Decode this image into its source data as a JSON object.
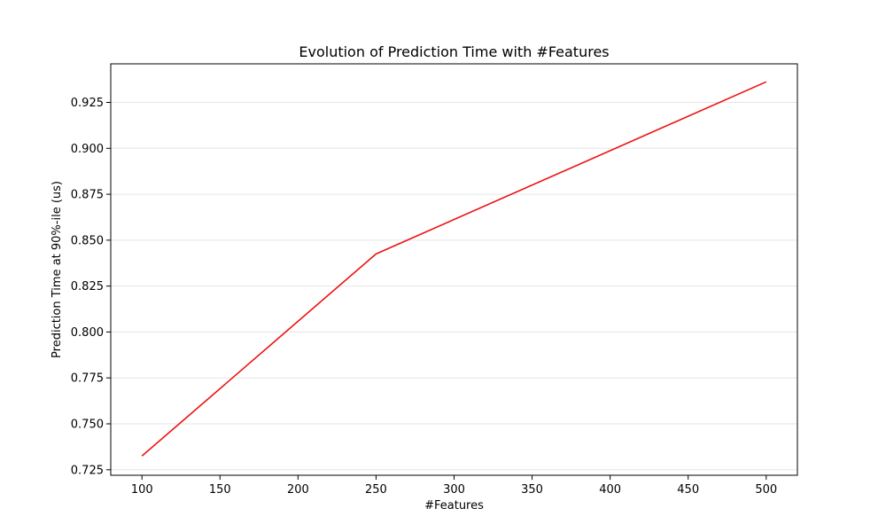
{
  "chart_data": {
    "type": "line",
    "title": "Evolution of Prediction Time with #Features",
    "xlabel": "#Features",
    "ylabel": "Prediction Time at 90%-ile (us)",
    "xlim": [
      80,
      520
    ],
    "ylim": [
      0.722,
      0.946
    ],
    "xticks": [
      100,
      150,
      200,
      250,
      300,
      350,
      400,
      450,
      500
    ],
    "yticks": [
      0.725,
      0.75,
      0.775,
      0.8,
      0.825,
      0.85,
      0.875,
      0.9,
      0.925
    ],
    "ytick_labels": [
      "0.725",
      "0.750",
      "0.775",
      "0.800",
      "0.825",
      "0.850",
      "0.875",
      "0.900",
      "0.925"
    ],
    "grid": "horizontal",
    "series": [
      {
        "color": "#ee1111",
        "x": [
          100,
          250,
          500
        ],
        "y": [
          0.7325,
          0.8425,
          0.9362
        ]
      }
    ]
  }
}
